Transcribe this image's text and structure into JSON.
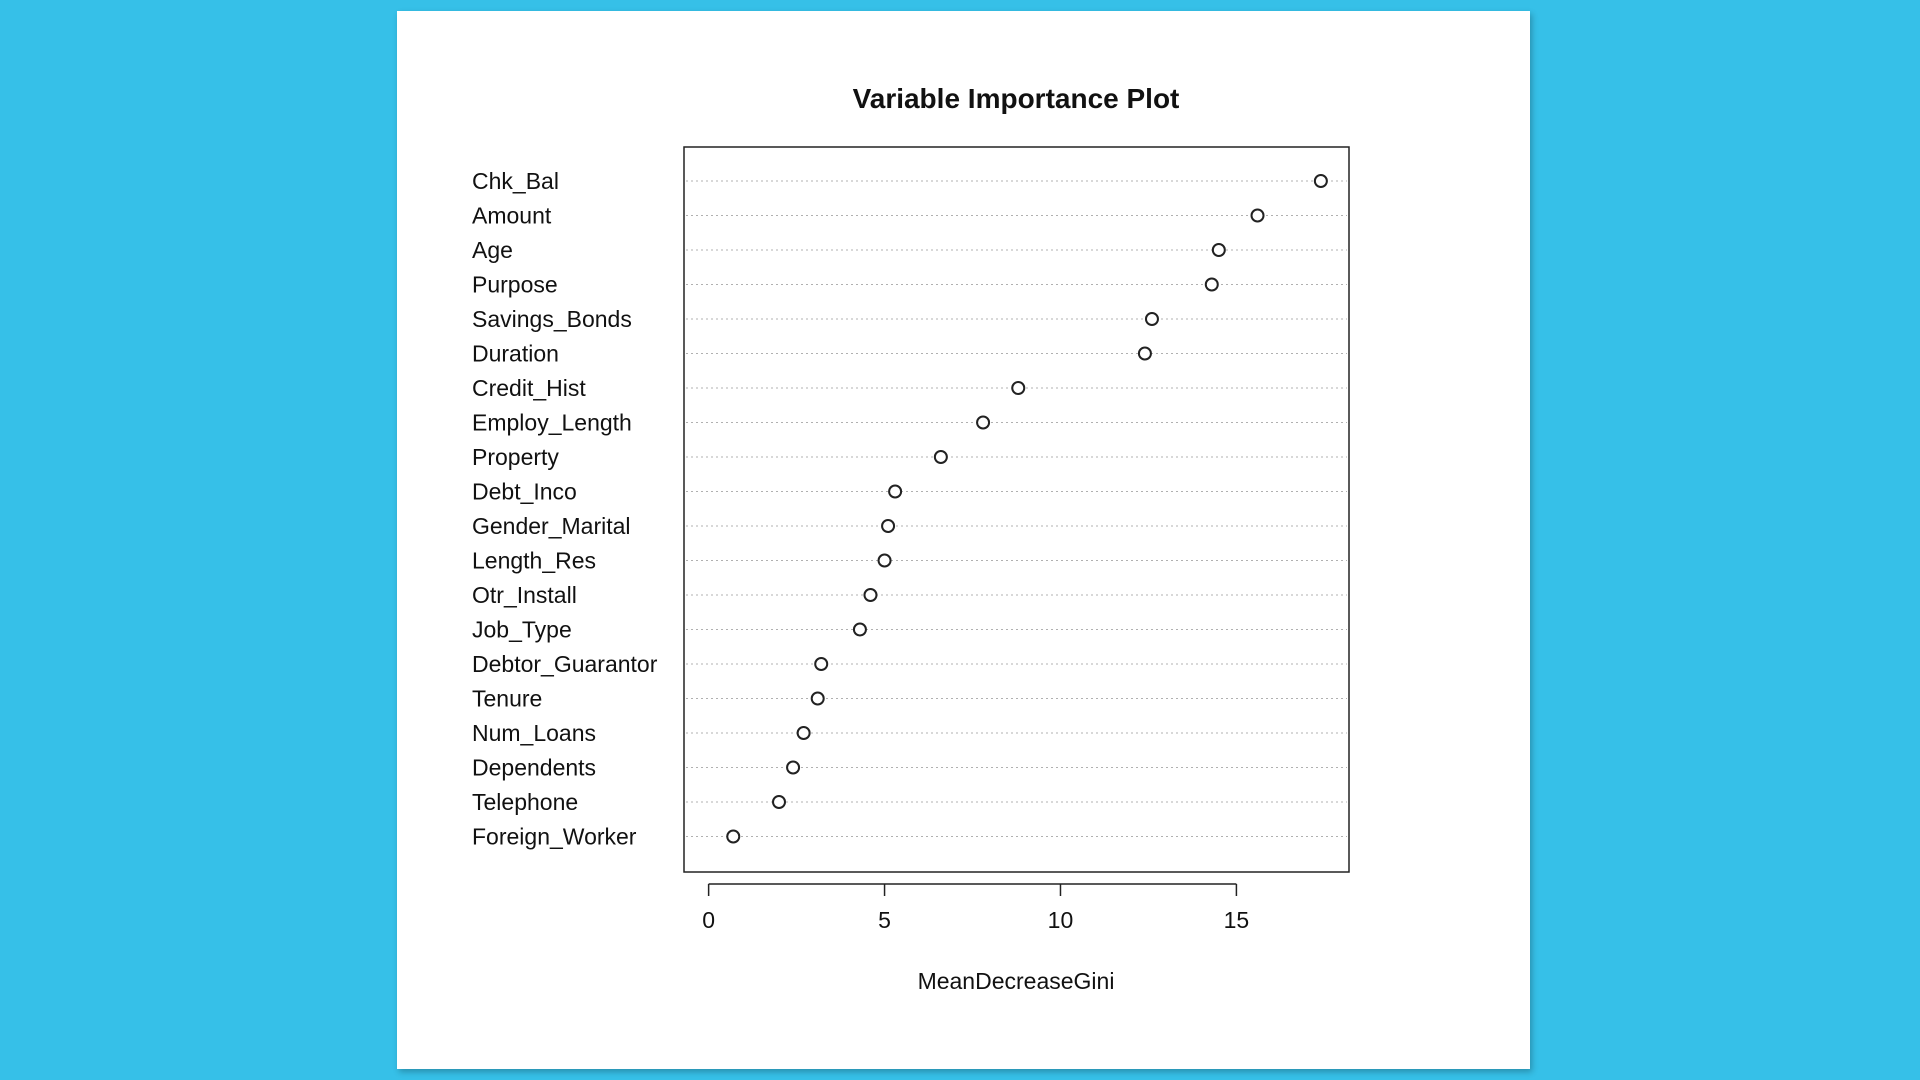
{
  "chart_data": {
    "type": "scatter",
    "title": "Variable Importance Plot",
    "xlabel": "MeanDecreaseGini",
    "ylabel": "",
    "xlim": [
      -0.7,
      18.2
    ],
    "xticks": [
      0,
      5,
      10,
      15
    ],
    "grid": "dotted-horizontal",
    "categories": [
      "Chk_Bal",
      "Amount",
      "Age",
      "Purpose",
      "Savings_Bonds",
      "Duration",
      "Credit_Hist",
      "Employ_Length",
      "Property",
      "Debt_Inco",
      "Gender_Marital",
      "Length_Res",
      "Otr_Install",
      "Job_Type",
      "Debtor_Guarantor",
      "Tenure",
      "Num_Loans",
      "Dependents",
      "Telephone",
      "Foreign_Worker"
    ],
    "values": [
      17.4,
      15.6,
      14.5,
      14.3,
      12.6,
      12.4,
      8.8,
      7.8,
      6.6,
      5.3,
      5.1,
      5.0,
      4.6,
      4.3,
      3.2,
      3.1,
      2.7,
      2.4,
      2.0,
      0.7
    ]
  }
}
